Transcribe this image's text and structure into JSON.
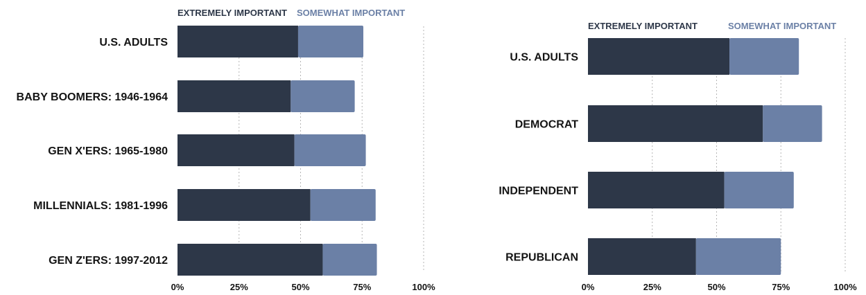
{
  "chart_data": [
    {
      "type": "bar",
      "orientation": "horizontal",
      "stacked": true,
      "categories": [
        "U.S. ADULTS",
        "BABY BOOMERS: 1946-1964",
        "GEN X'ERS: 1965-1980",
        "MILLENNIALS: 1981-1996",
        "GEN Z'ERS: 1997-2012"
      ],
      "series": [
        {
          "name": "EXTREMELY IMPORTANT",
          "values": [
            49,
            46,
            47.5,
            54,
            59
          ]
        },
        {
          "name": "SOMEWHAT IMPORTANT",
          "values": [
            26.5,
            26,
            29,
            26.5,
            22
          ]
        }
      ],
      "xticks": [
        "0%",
        "25%",
        "50%",
        "75%",
        "100%"
      ],
      "xlim": [
        0,
        100
      ],
      "grid": "vertical dashed",
      "legend_position": "top",
      "colors": {
        "extremely": "#2d3748",
        "somewhat": "#6b80a6"
      }
    },
    {
      "type": "bar",
      "orientation": "horizontal",
      "stacked": true,
      "categories": [
        "U.S. ADULTS",
        "DEMOCRAT",
        "INDEPENDENT",
        "REPUBLICAN"
      ],
      "series": [
        {
          "name": "EXTREMELY IMPORTANT",
          "values": [
            55,
            68,
            53,
            42
          ]
        },
        {
          "name": "SOMEWHAT IMPORTANT",
          "values": [
            27,
            23,
            27,
            33
          ]
        }
      ],
      "xticks": [
        "0%",
        "25%",
        "50%",
        "75%",
        "100%"
      ],
      "xlim": [
        0,
        100
      ],
      "grid": "vertical dashed",
      "legend_position": "top",
      "colors": {
        "extremely": "#2d3748",
        "somewhat": "#6b80a6"
      }
    }
  ]
}
